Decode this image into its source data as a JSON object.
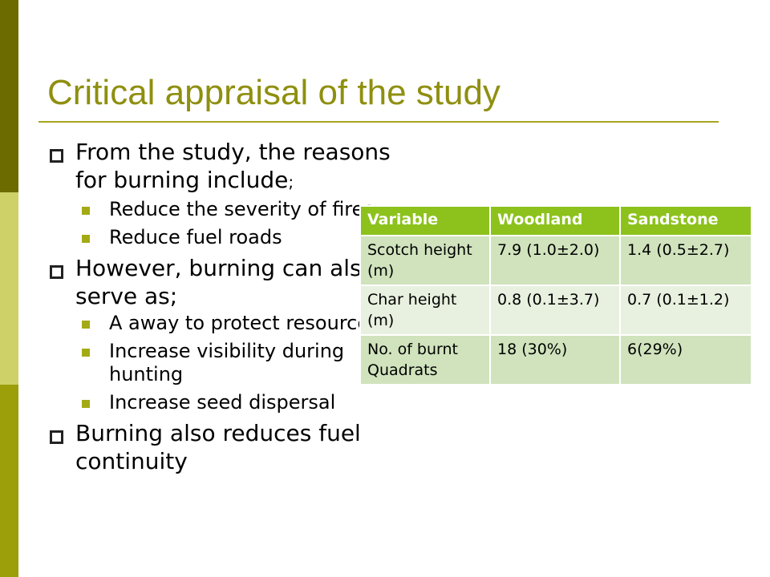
{
  "slide": {
    "title": "Critical appraisal of the study",
    "bullets": [
      {
        "text": "From the study, the reasons for burning include",
        "suffix": ";",
        "sub": [
          "Reduce the severity of fires",
          "Reduce fuel roads"
        ]
      },
      {
        "text": "However, burning can also serve as;",
        "suffix": "",
        "sub": [
          "A away to protect resources",
          "Increase visibility during hunting",
          "Increase seed dispersal"
        ]
      },
      {
        "text": "Burning also reduces fuel continuity",
        "suffix": "",
        "sub": []
      }
    ]
  },
  "table": {
    "headers": [
      "Variable",
      "Woodland",
      "Sandstone"
    ],
    "rows": [
      [
        "Scotch height (m)",
        "7.9 (1.0±2.0)",
        "1.4 (0.5±2.7)"
      ],
      [
        "Char height (m)",
        "0.8 (0.1±3.7)",
        "0.7 (0.1±1.2)"
      ],
      [
        "No. of burnt Quadrats",
        "18 (30%)",
        "6(29%)"
      ]
    ]
  },
  "colors": {
    "title": "#8f8f10",
    "sidebar_dark": "#6b6b00",
    "sidebar_light": "#cdd168",
    "sidebar_mid": "#9c9e0a",
    "table_header": "#8cc21b",
    "table_row_odd": "#d0e3bd",
    "table_row_even": "#e8f1df"
  }
}
